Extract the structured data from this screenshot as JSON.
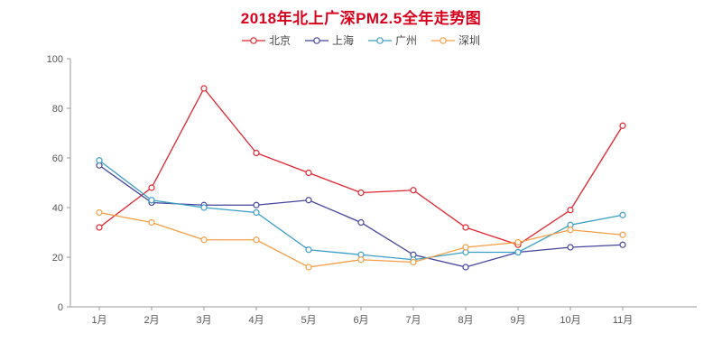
{
  "page": {
    "background": "#ffffff"
  },
  "chart_data": {
    "type": "line",
    "title": "2018年北上广深PM2.5全年走势图",
    "title_color": "#d9001b",
    "categories": [
      "1月",
      "2月",
      "3月",
      "4月",
      "5月",
      "6月",
      "7月",
      "8月",
      "9月",
      "10月",
      "11月"
    ],
    "series": [
      {
        "name": "北京",
        "color": "#e0232d",
        "values": [
          32,
          48,
          88,
          62,
          54,
          46,
          47,
          32,
          25,
          39,
          73
        ]
      },
      {
        "name": "上海",
        "color": "#45449b",
        "values": [
          57,
          42,
          41,
          41,
          43,
          34,
          21,
          16,
          22,
          24,
          25
        ]
      },
      {
        "name": "广州",
        "color": "#3a9fc6",
        "values": [
          59,
          43,
          40,
          38,
          23,
          21,
          19,
          22,
          22,
          33,
          37
        ]
      },
      {
        "name": "深圳",
        "color": "#f49d43",
        "values": [
          38,
          34,
          27,
          27,
          16,
          19,
          18,
          24,
          26,
          31,
          29
        ]
      }
    ],
    "ylim": [
      0,
      100
    ],
    "yticks": [
      0,
      20,
      40,
      60,
      80,
      100
    ],
    "grid": false,
    "legend_position": "top",
    "axis_color": "#999999",
    "tick_label_color": "#555555",
    "marker_style": "open-circle"
  }
}
